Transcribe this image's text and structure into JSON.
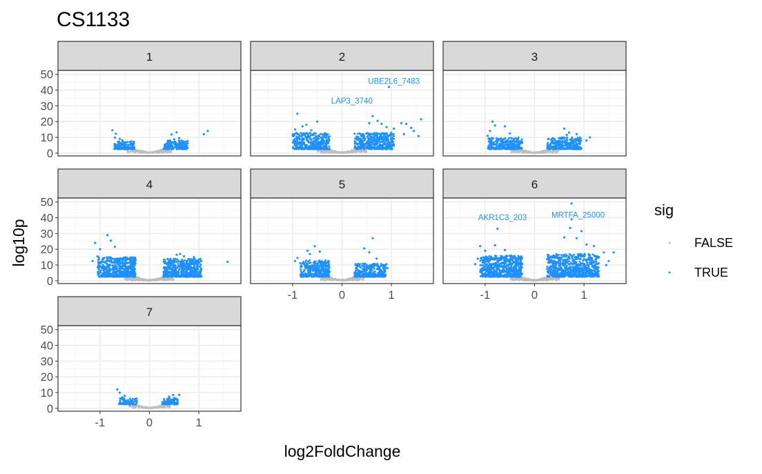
{
  "chart_data": {
    "type": "scatter",
    "title": "CS1133",
    "xlabel": "log2FoldChange",
    "ylabel": "log10p",
    "xlim": [
      -1.85,
      1.85
    ],
    "ylim": [
      -1.8,
      52.5
    ],
    "x_ticks": [
      -1,
      0,
      1
    ],
    "x_tick_labels": [
      "-1",
      "0",
      "1"
    ],
    "y_ticks": [
      0,
      10,
      20,
      30,
      40,
      50
    ],
    "y_tick_labels": [
      "0",
      "10",
      "20",
      "30",
      "40",
      "50"
    ],
    "grid": true,
    "facet_by": "cluster",
    "legend": {
      "title": "sig",
      "position": "right",
      "entries": [
        {
          "label": "FALSE",
          "color": "#bebebe"
        },
        {
          "label": "TRUE",
          "color": "#1e90ff"
        }
      ]
    },
    "panels": [
      {
        "label": "1",
        "points": [
          [
            -0.75,
            14.5,
            1
          ],
          [
            -0.68,
            12.3,
            1
          ],
          [
            -0.7,
            9.8,
            1
          ],
          [
            -0.6,
            9.0,
            1
          ],
          [
            -0.55,
            8.2,
            1
          ],
          [
            -0.4,
            7.0,
            1
          ],
          [
            0.45,
            11.8,
            1
          ],
          [
            0.55,
            13.2,
            1
          ],
          [
            0.6,
            9.5,
            1
          ],
          [
            0.5,
            8.8,
            1
          ],
          [
            1.1,
            12.0,
            1
          ],
          [
            1.18,
            14.0,
            1
          ],
          [
            0.7,
            7.0,
            1
          ]
        ],
        "clouds": [
          {
            "side": "neg",
            "xmin": -0.72,
            "xmax": -0.3,
            "ymin": 2.5,
            "ymax": 7.5,
            "count": 140
          },
          {
            "side": "pos",
            "xmin": 0.28,
            "xmax": 0.78,
            "ymin": 2.5,
            "ymax": 8,
            "count": 160
          }
        ],
        "core": {
          "xmax": 0.45,
          "ymax": 4.5,
          "count": 280
        },
        "labels": []
      },
      {
        "label": "2",
        "points": [
          [
            -0.9,
            25.0,
            1
          ],
          [
            -0.72,
            18.0,
            1
          ],
          [
            -0.5,
            20.0,
            1
          ],
          [
            -0.95,
            15.0,
            1
          ],
          [
            -0.8,
            17.0,
            1
          ],
          [
            -1.0,
            11.0,
            1
          ],
          [
            -0.62,
            14.5,
            1
          ],
          [
            0.62,
            23.5,
            1
          ],
          [
            0.72,
            20.5,
            1
          ],
          [
            0.55,
            19.0,
            1
          ],
          [
            0.8,
            18.5,
            1
          ],
          [
            0.9,
            16.5,
            1
          ],
          [
            1.05,
            15.5,
            1
          ],
          [
            1.2,
            19.0,
            1
          ],
          [
            1.3,
            18.5,
            1
          ],
          [
            1.4,
            16.0,
            1
          ],
          [
            1.45,
            14.0,
            1
          ],
          [
            1.55,
            10.8,
            1
          ],
          [
            1.6,
            21.5,
            1
          ],
          [
            1.25,
            12.0,
            1
          ],
          [
            0.95,
            42.0,
            1
          ]
        ],
        "clouds": [
          {
            "side": "neg",
            "xmin": -1.0,
            "xmax": -0.25,
            "ymin": 2.5,
            "ymax": 13,
            "count": 380
          },
          {
            "side": "pos",
            "xmin": 0.25,
            "xmax": 1.05,
            "ymin": 2.5,
            "ymax": 13,
            "count": 420
          }
        ],
        "core": {
          "xmax": 0.5,
          "ymax": 5,
          "count": 360
        },
        "labels": [
          {
            "text": "UBE2L6_7483",
            "x": 1.05,
            "y": 44.0
          },
          {
            "text": "LAP3_3740",
            "x": 0.2,
            "y": 31.5
          }
        ]
      },
      {
        "label": "3",
        "points": [
          [
            -0.85,
            20.0,
            1
          ],
          [
            -0.8,
            17.5,
            1
          ],
          [
            -0.6,
            17.0,
            1
          ],
          [
            -0.9,
            14.0,
            1
          ],
          [
            -0.95,
            11.0,
            1
          ],
          [
            -0.5,
            12.5,
            1
          ],
          [
            0.6,
            15.5,
            1
          ],
          [
            0.7,
            13.0,
            1
          ],
          [
            0.65,
            11.5,
            1
          ],
          [
            0.85,
            12.0,
            1
          ],
          [
            1.12,
            10.0,
            1
          ],
          [
            1.05,
            8.0,
            1
          ]
        ],
        "clouds": [
          {
            "side": "neg",
            "xmin": -0.95,
            "xmax": -0.25,
            "ymin": 2.5,
            "ymax": 10,
            "count": 260
          },
          {
            "side": "pos",
            "xmin": 0.25,
            "xmax": 0.95,
            "ymin": 2.5,
            "ymax": 10,
            "count": 260
          }
        ],
        "core": {
          "xmax": 0.48,
          "ymax": 4.5,
          "count": 320
        },
        "labels": []
      },
      {
        "label": "4",
        "points": [
          [
            -1.1,
            24.0,
            1
          ],
          [
            -0.85,
            29.0,
            1
          ],
          [
            -0.78,
            25.5,
            1
          ],
          [
            -1.0,
            20.0,
            1
          ],
          [
            -0.7,
            21.5,
            1
          ],
          [
            -1.05,
            15.5,
            1
          ],
          [
            -1.15,
            12.5,
            1
          ],
          [
            0.55,
            16.5,
            1
          ],
          [
            0.62,
            17.0,
            1
          ],
          [
            0.7,
            15.5,
            1
          ],
          [
            0.9,
            15.0,
            1
          ],
          [
            1.0,
            13.5,
            1
          ],
          [
            1.05,
            12.5,
            1
          ],
          [
            1.58,
            12.0,
            1
          ]
        ],
        "clouds": [
          {
            "side": "neg",
            "xmin": -1.05,
            "xmax": -0.28,
            "ymin": 2.5,
            "ymax": 15,
            "count": 560
          },
          {
            "side": "pos",
            "xmin": 0.28,
            "xmax": 1.05,
            "ymin": 2.5,
            "ymax": 14,
            "count": 520
          }
        ],
        "core": {
          "xmax": 0.5,
          "ymax": 5,
          "count": 400
        },
        "labels": []
      },
      {
        "label": "5",
        "points": [
          [
            -0.7,
            19.0,
            1
          ],
          [
            -0.65,
            17.0,
            1
          ],
          [
            -0.45,
            18.5,
            1
          ],
          [
            -0.55,
            22.0,
            1
          ],
          [
            -0.9,
            14.5,
            1
          ],
          [
            -0.95,
            12.5,
            1
          ],
          [
            0.45,
            20.5,
            1
          ],
          [
            0.62,
            27.0,
            1
          ],
          [
            0.55,
            18.0,
            1
          ],
          [
            0.7,
            14.0,
            1
          ],
          [
            0.9,
            10.5,
            1
          ],
          [
            0.92,
            8.0,
            1
          ]
        ],
        "clouds": [
          {
            "side": "neg",
            "xmin": -0.85,
            "xmax": -0.25,
            "ymin": 2.5,
            "ymax": 13,
            "count": 330
          },
          {
            "side": "pos",
            "xmin": 0.25,
            "xmax": 0.88,
            "ymin": 2.5,
            "ymax": 11,
            "count": 300
          }
        ],
        "core": {
          "xmax": 0.45,
          "ymax": 5,
          "count": 340
        },
        "labels": []
      },
      {
        "label": "6",
        "points": [
          [
            -0.75,
            33.0,
            1
          ],
          [
            -1.1,
            22.0,
            1
          ],
          [
            -1.0,
            19.0,
            1
          ],
          [
            -0.8,
            22.5,
            1
          ],
          [
            -1.15,
            14.0,
            1
          ],
          [
            -1.2,
            10.5,
            1
          ],
          [
            -0.6,
            19.5,
            1
          ],
          [
            0.75,
            49.0,
            1
          ],
          [
            0.75,
            39.0,
            1
          ],
          [
            0.72,
            33.5,
            1
          ],
          [
            0.95,
            31.5,
            1
          ],
          [
            0.85,
            27.0,
            1
          ],
          [
            0.6,
            27.5,
            1
          ],
          [
            1.05,
            23.0,
            1
          ],
          [
            1.2,
            22.0,
            1
          ],
          [
            1.4,
            18.0,
            1
          ],
          [
            1.6,
            18.0,
            1
          ],
          [
            1.5,
            12.5,
            1
          ],
          [
            1.45,
            10.0,
            1
          ],
          [
            1.3,
            15.0,
            1
          ]
        ],
        "clouds": [
          {
            "side": "neg",
            "xmin": -1.1,
            "xmax": -0.25,
            "ymin": 2.5,
            "ymax": 16,
            "count": 620
          },
          {
            "side": "pos",
            "xmin": 0.25,
            "xmax": 1.3,
            "ymin": 2.5,
            "ymax": 17,
            "count": 720
          }
        ],
        "core": {
          "xmax": 0.5,
          "ymax": 5.5,
          "count": 420
        },
        "labels": [
          {
            "text": "AKR1C3_203",
            "x": -0.65,
            "y": 38.5
          },
          {
            "text": "MRTFA_25000",
            "x": 0.88,
            "y": 40.0
          }
        ]
      },
      {
        "label": "7",
        "points": [
          [
            -0.65,
            12.0,
            1
          ],
          [
            -0.6,
            10.0,
            1
          ],
          [
            -0.5,
            8.0,
            1
          ],
          [
            -0.55,
            7.0,
            1
          ],
          [
            0.48,
            8.5,
            1
          ],
          [
            0.5,
            6.5,
            1
          ],
          [
            0.55,
            6.0,
            1
          ],
          [
            0.6,
            8.5,
            1
          ],
          [
            0.4,
            7.5,
            1
          ]
        ],
        "clouds": [
          {
            "side": "neg",
            "xmin": -0.62,
            "xmax": -0.25,
            "ymin": 2.5,
            "ymax": 6.5,
            "count": 80
          },
          {
            "side": "pos",
            "xmin": 0.25,
            "xmax": 0.58,
            "ymin": 2.5,
            "ymax": 6.5,
            "count": 80
          }
        ],
        "core": {
          "xmax": 0.42,
          "ymax": 4,
          "count": 220
        },
        "labels": []
      }
    ]
  },
  "colors": {
    "true": "#1e90ff",
    "false": "#bebebe",
    "strip_fill": "#d9d9d9",
    "panel_border": "#333333",
    "grid_major": "#ebebeb",
    "grid_minor": "#f5f5f5"
  }
}
